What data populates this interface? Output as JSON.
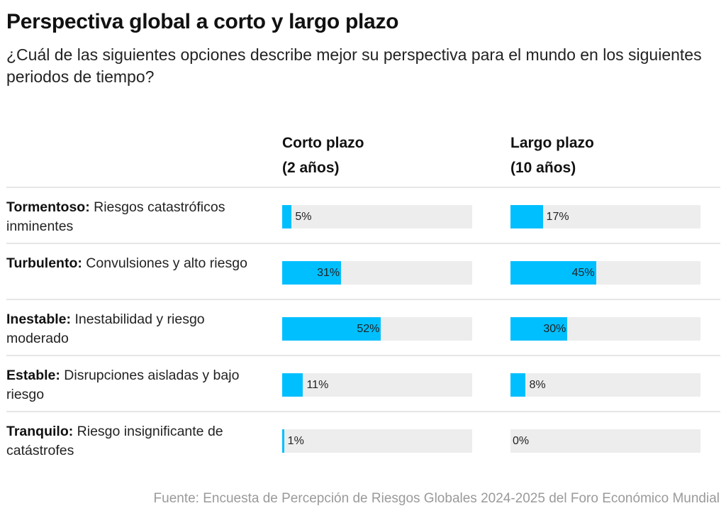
{
  "chart_data": {
    "type": "bar",
    "title": "Perspectiva global a corto y largo plazo",
    "subtitle": "¿Cuál de las siguientes opciones describe mejor su perspectiva para el mundo en los siguientes periodos de tiempo?",
    "source": "Fuente: Encuesta de Percepción de Riesgos Globales 2024-2025 del Foro Económico Mundial",
    "xlim": [
      0,
      100
    ],
    "bar_color": "#00bfff",
    "track_color": "#ededed",
    "categories": [
      {
        "name": "Tormentoso:",
        "desc": "Riesgos catastróficos inminentes"
      },
      {
        "name": "Turbulento:",
        "desc": "Convulsiones y alto riesgo"
      },
      {
        "name": "Inestable:",
        "desc": "Inestabilidad y riesgo moderado"
      },
      {
        "name": "Estable:",
        "desc": "Disrupciones aisladas y bajo riesgo"
      },
      {
        "name": "Tranquilo:",
        "desc": "Riesgo insignificante de catástrofes"
      }
    ],
    "series": [
      {
        "name": "Corto plazo",
        "subname": "(2 años)",
        "values": [
          5,
          31,
          52,
          11,
          1
        ]
      },
      {
        "name": "Largo plazo",
        "subname": "(10 años)",
        "values": [
          17,
          45,
          30,
          8,
          0
        ]
      }
    ]
  }
}
